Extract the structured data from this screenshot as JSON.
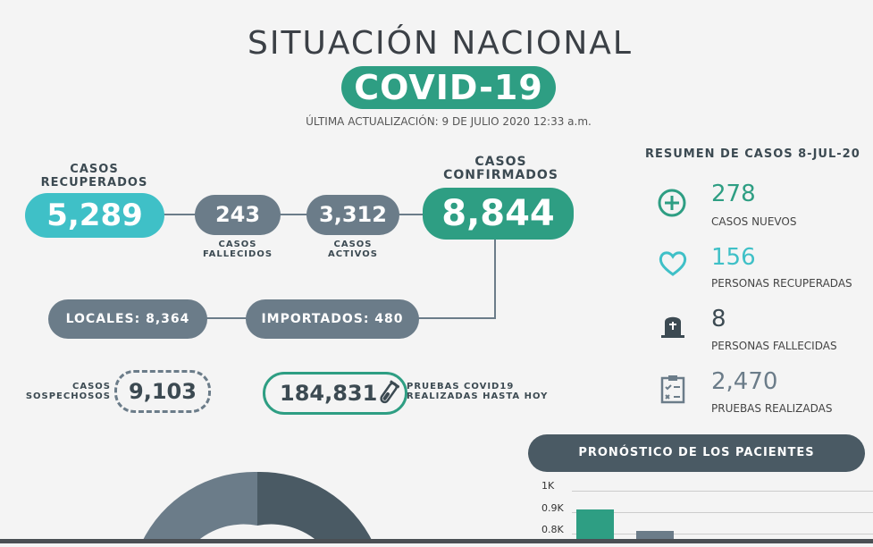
{
  "header": {
    "title": "SITUACIÓN NACIONAL",
    "subtitle": "COVID-19",
    "update": "ÚLTIMA ACTUALIZACIÓN: 9 DE JULIO 2020 12:33 a.m."
  },
  "flow": {
    "recovered_label_1": "CASOS",
    "recovered_label_2": "RECUPERADOS",
    "recovered_value": "5,289",
    "deaths_value": "243",
    "deaths_label_1": "CASOS",
    "deaths_label_2": "FALLECIDOS",
    "active_value": "3,312",
    "active_label_1": "CASOS",
    "active_label_2": "ACTIVOS",
    "confirmed_label_1": "CASOS",
    "confirmed_label_2": "CONFIRMADOS",
    "confirmed_value": "8,844",
    "locales": "LOCALES: 8,364",
    "importados": "IMPORTADOS: 480",
    "suspected_label_1": "CASOS",
    "suspected_label_2": "SOSPECHOSOS",
    "suspected_value": "9,103",
    "tests_value": "184,831",
    "tests_label_1": "PRUEBAS COVID19",
    "tests_label_2": "REALIZADAS HASTA HOY"
  },
  "summary": {
    "title": "RESUMEN DE CASOS 8-JUL-20",
    "items": [
      {
        "value": "278",
        "label": "CASOS NUEVOS",
        "icon": "plus-circle-icon",
        "color": "#2e9e83"
      },
      {
        "value": "156",
        "label": "PERSONAS RECUPERADAS",
        "icon": "heart-icon",
        "color": "#3fc0c7"
      },
      {
        "value": "8",
        "label": "PERSONAS FALLECIDAS",
        "icon": "tombstone-icon",
        "color": "#3c4a52"
      },
      {
        "value": "2,470",
        "label": "PRUEBAS REALIZADAS",
        "icon": "clipboard-icon",
        "color": "#6b7c89"
      }
    ]
  },
  "forecast": {
    "title": "PRONÓSTICO DE LOS PACIENTES",
    "ticks": [
      "1K",
      "0.9K",
      "0.8K"
    ]
  },
  "colors": {
    "teal": "#2e9e83",
    "cyan": "#3fc0c7",
    "slate": "#6b7c89",
    "dark": "#4a5a64"
  }
}
